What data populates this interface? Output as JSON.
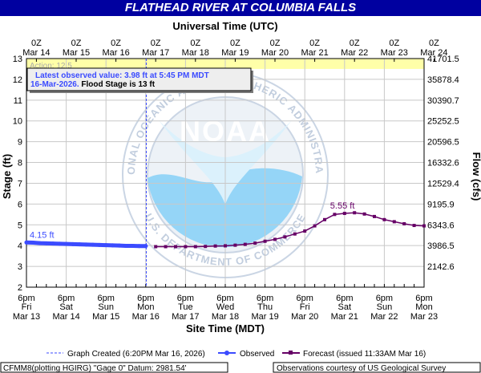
{
  "title": "FLATHEAD RIVER AT COLUMBIA FALLS",
  "top_axis_title": "Universal Time (UTC)",
  "bottom_axis_title": "Site Time (MDT)",
  "left_axis_title": "Stage (ft)",
  "right_axis_title": "Flow (cfs)",
  "top_ticks": [
    {
      "l1": "0Z",
      "l2": "Mar 14"
    },
    {
      "l1": "0Z",
      "l2": "Mar 15"
    },
    {
      "l1": "0Z",
      "l2": "Mar 16"
    },
    {
      "l1": "0Z",
      "l2": "Mar 17"
    },
    {
      "l1": "0Z",
      "l2": "Mar 18"
    },
    {
      "l1": "0Z",
      "l2": "Mar 19"
    },
    {
      "l1": "0Z",
      "l2": "Mar 20"
    },
    {
      "l1": "0Z",
      "l2": "Mar 21"
    },
    {
      "l1": "0Z",
      "l2": "Mar 22"
    },
    {
      "l1": "0Z",
      "l2": "Mar 23"
    },
    {
      "l1": "0Z",
      "l2": "Mar 24"
    }
  ],
  "bottom_ticks": [
    {
      "l1": "6pm",
      "l2": "Fri",
      "l3": "Mar 13"
    },
    {
      "l1": "6pm",
      "l2": "Sat",
      "l3": "Mar 14"
    },
    {
      "l1": "6pm",
      "l2": "Sun",
      "l3": "Mar 15"
    },
    {
      "l1": "6pm",
      "l2": "Mon",
      "l3": "Mar 16"
    },
    {
      "l1": "6pm",
      "l2": "Tue",
      "l3": "Mar 17"
    },
    {
      "l1": "6pm",
      "l2": "Wed",
      "l3": "Mar 18"
    },
    {
      "l1": "6pm",
      "l2": "Thu",
      "l3": "Mar 19"
    },
    {
      "l1": "6pm",
      "l2": "Fri",
      "l3": "Mar 20"
    },
    {
      "l1": "6pm",
      "l2": "Sat",
      "l3": "Mar 21"
    },
    {
      "l1": "6pm",
      "l2": "Sun",
      "l3": "Mar 22"
    },
    {
      "l1": "6pm",
      "l2": "Mon",
      "l3": "Mar 23"
    }
  ],
  "left_ticks": [
    "2",
    "3",
    "4",
    "5",
    "6",
    "7",
    "8",
    "9",
    "10",
    "11",
    "12",
    "13"
  ],
  "right_ticks": [
    "2142.6",
    "3986.5",
    "6343.6",
    "9195.9",
    "12529.4",
    "16332.6",
    "20596.5",
    "25252.5",
    "30390.7",
    "35878.4",
    "41701.5"
  ],
  "info_box": {
    "line1": "Latest observed value: 3.98 ft at 5:45 PM MDT",
    "line2a": "16-Mar-2026.",
    "line2b": " Flood Stage is 13 ft"
  },
  "flood_label": "Action: 12.5",
  "watermark": {
    "top_text": "NATIONAL OCEANIC AND ATMOSPHERIC ADMINISTRATION",
    "bottom_text": "U.S. DEPARTMENT OF COMMERCE",
    "center": "NOAA"
  },
  "observed_label": "4.15 ft",
  "forecast_label": "5.55 ft",
  "legend": {
    "created": "Graph Created (6:20PM Mar 16, 2026)",
    "observed": "Observed",
    "forecast": "Forecast (issued 11:33AM Mar 16)"
  },
  "footer": {
    "left": "CFMM8(plotting HGIRG) \"Gage 0\" Datum: 2981.54'",
    "right": "Observations courtesy of US Geological Survey"
  },
  "colors": {
    "title_bg": "#0000a0",
    "observed": "#3b4bff",
    "forecast": "#660066",
    "flood_band": "#ffffa8",
    "grid": "#c8c8c8"
  },
  "chart_data": {
    "type": "line",
    "title": "FLATHEAD RIVER AT COLUMBIA FALLS",
    "xlabel": "Site Time (MDT)",
    "ylabel": "Stage (ft)",
    "y2label": "Flow (cfs)",
    "ylim": [
      2,
      13
    ],
    "x_unit": "hours after 6pm Fri Mar 13",
    "xlim": [
      0,
      240
    ],
    "flood_stage": 13,
    "action_band": [
      12.5,
      13
    ],
    "graph_created_x": 72.33,
    "series": [
      {
        "name": "Observed",
        "x": [
          0,
          4,
          8,
          12,
          16,
          20,
          24,
          28,
          32,
          36,
          40,
          44,
          48,
          52,
          56,
          60,
          64,
          68,
          72
        ],
        "y": [
          4.15,
          4.14,
          4.12,
          4.11,
          4.1,
          4.09,
          4.08,
          4.07,
          4.06,
          4.05,
          4.04,
          4.03,
          4.02,
          4.01,
          4.0,
          3.99,
          3.99,
          3.98,
          3.98
        ]
      },
      {
        "name": "Forecast (issued 11:33AM Mar 16)",
        "x": [
          78,
          84,
          90,
          96,
          102,
          108,
          114,
          120,
          126,
          132,
          138,
          144,
          150,
          156,
          162,
          168,
          174,
          180,
          186,
          192,
          198,
          204,
          210,
          216,
          222,
          228,
          234,
          240
        ],
        "y": [
          3.95,
          3.95,
          3.95,
          3.95,
          3.95,
          3.96,
          3.98,
          3.99,
          4.02,
          4.06,
          4.12,
          4.21,
          4.3,
          4.42,
          4.56,
          4.7,
          4.95,
          5.25,
          5.5,
          5.55,
          5.58,
          5.52,
          5.4,
          5.25,
          5.15,
          5.05,
          4.97,
          4.95
        ]
      }
    ]
  }
}
